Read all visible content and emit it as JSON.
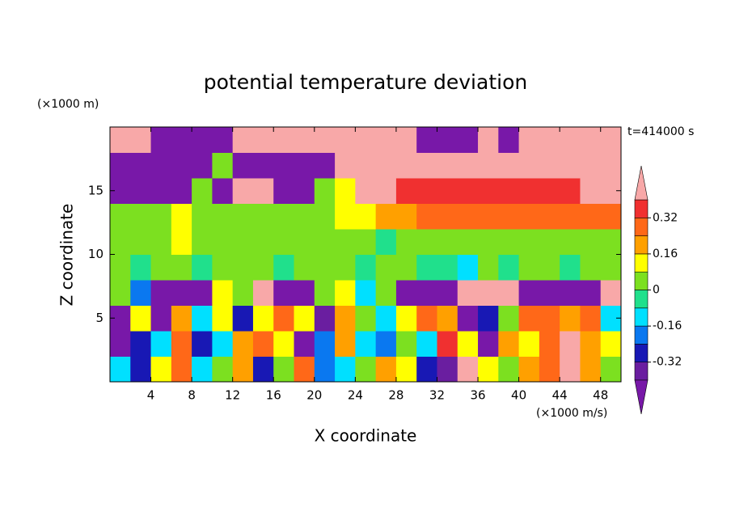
{
  "chart_data": {
    "type": "contour",
    "title": "potential temperature deviation",
    "x_label": "X coordinate",
    "y_label": "Z coordinate",
    "y_unit": "(×1000 m)",
    "x_unit": "(×1000 m/s)",
    "annotation": "t=414000 s",
    "xlim": [
      0,
      50
    ],
    "ylim": [
      0,
      20
    ],
    "xticks": [
      4,
      8,
      12,
      16,
      20,
      24,
      28,
      32,
      36,
      40,
      44,
      48
    ],
    "yticks": [
      5,
      10,
      15
    ],
    "levels": [
      -0.4,
      -0.32,
      -0.24,
      -0.16,
      -0.08,
      0,
      0.08,
      0.16,
      0.24,
      0.32,
      0.4
    ],
    "colors": [
      "#7818a8",
      "#6a1ea0",
      "#1818b4",
      "#0a78f0",
      "#00e0ff",
      "#20e08c",
      "#7ce020",
      "#ffff00",
      "#ffa000",
      "#ff6818",
      "#f03030",
      "#f8a8a8"
    ],
    "colorbar_ticks": [
      -0.32,
      -0.16,
      0,
      0.16,
      0.32
    ],
    "z": [
      [
        -0.1,
        -0.3,
        0.1,
        0.3,
        -0.1,
        0.05,
        0.2,
        -0.3,
        0.05,
        0.3,
        -0.2,
        -0.1,
        0.05,
        0.2,
        0.1,
        -0.3,
        -0.4,
        0.45,
        0.1,
        0,
        0.2,
        0.3,
        0.45,
        0.2,
        0
      ],
      [
        -0.45,
        -0.3,
        -0.1,
        0.3,
        -0.3,
        -0.1,
        0.2,
        0.3,
        0.1,
        -0.45,
        -0.2,
        0.2,
        -0.1,
        -0.2,
        0,
        -0.1,
        0.35,
        0.1,
        -0.45,
        0.2,
        0.1,
        0.3,
        0.45,
        0.2,
        0.1
      ],
      [
        -0.45,
        0.1,
        -0.45,
        0.2,
        -0.1,
        0.1,
        -0.3,
        0.1,
        0.3,
        0.1,
        -0.4,
        0.2,
        0,
        -0.1,
        0.1,
        0.3,
        0.2,
        -0.45,
        -0.3,
        0,
        0.25,
        0.3,
        0.2,
        0.3,
        -0.1
      ],
      [
        0,
        -0.2,
        -0.45,
        -0.45,
        -0.45,
        0.1,
        0,
        0.45,
        -0.45,
        -0.45,
        0,
        0.1,
        -0.1,
        0,
        -0.45,
        -0.45,
        -0.45,
        0.45,
        0.45,
        0.45,
        -0.45,
        -0.45,
        -0.45,
        -0.45,
        0.45
      ],
      [
        0.03,
        -0.03,
        0.03,
        0.03,
        -0.03,
        0.03,
        0.03,
        0.03,
        -0.03,
        0.03,
        0.03,
        0.03,
        -0.03,
        0.03,
        0.03,
        -0.03,
        -0.03,
        -0.1,
        0.03,
        -0.03,
        0.03,
        0.03,
        -0.03,
        0.03,
        0.03
      ],
      [
        0.03,
        0.03,
        0.03,
        0.1,
        0.03,
        0.03,
        0.03,
        0.03,
        0.03,
        0.03,
        0.03,
        0.03,
        0.03,
        -0.03,
        0.03,
        0.03,
        0.03,
        0.03,
        0.03,
        0.03,
        0.03,
        0.03,
        0.03,
        0.03,
        0.03
      ],
      [
        0.03,
        0.03,
        0.03,
        0.1,
        0.03,
        0.03,
        0.03,
        0.03,
        0.03,
        0.03,
        0.03,
        0.1,
        0.12,
        0.2,
        0.2,
        0.28,
        0.28,
        0.28,
        0.28,
        0.28,
        0.28,
        0.28,
        0.28,
        0.28,
        0.28
      ],
      [
        -0.45,
        -0.45,
        -0.45,
        -0.45,
        0,
        -0.45,
        0.45,
        0.45,
        -0.45,
        -0.45,
        0,
        0.1,
        0.45,
        0.45,
        0.36,
        0.36,
        0.36,
        0.36,
        0.36,
        0.36,
        0.36,
        0.36,
        0.36,
        0.45,
        0.45
      ],
      [
        -0.45,
        -0.45,
        -0.45,
        -0.45,
        -0.45,
        0,
        -0.45,
        -0.45,
        -0.45,
        -0.45,
        -0.45,
        0.45,
        0.45,
        0.45,
        0.45,
        0.45,
        0.45,
        0.45,
        0.45,
        0.45,
        0.45,
        0.45,
        0.45,
        0.45,
        0.45
      ],
      [
        0.45,
        0.45,
        -0.45,
        -0.45,
        -0.45,
        -0.45,
        0.45,
        0.45,
        0.45,
        0.45,
        0.45,
        0.45,
        0.45,
        0.45,
        0.45,
        -0.45,
        -0.45,
        -0.45,
        0.45,
        -0.45,
        0.45,
        0.45,
        0.45,
        0.45,
        0.45
      ]
    ]
  }
}
